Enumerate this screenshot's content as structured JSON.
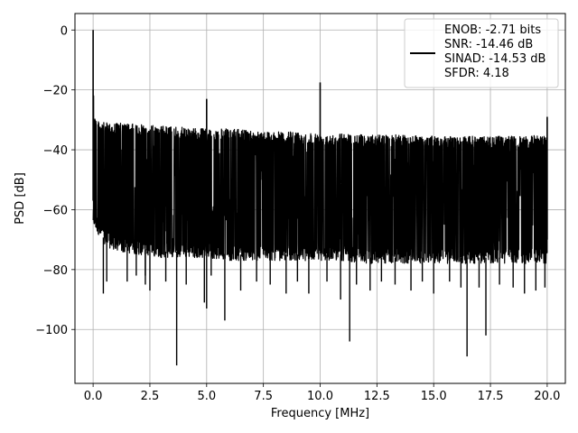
{
  "chart_data": {
    "type": "line",
    "title": "",
    "xlabel": "Frequency [MHz]",
    "ylabel": "PSD [dB]",
    "xlim": [
      -0.8,
      20.8
    ],
    "ylim": [
      -118,
      5.5
    ],
    "x_ticks": [
      0.0,
      2.5,
      5.0,
      7.5,
      10.0,
      12.5,
      15.0,
      17.5,
      20.0
    ],
    "x_tick_labels": [
      "0.0",
      "2.5",
      "5.0",
      "7.5",
      "10.0",
      "12.5",
      "15.0",
      "17.5",
      "20.0"
    ],
    "y_ticks": [
      0,
      -20,
      -40,
      -60,
      -80,
      -100
    ],
    "y_tick_labels": [
      "0",
      "−20",
      "−40",
      "−60",
      "−80",
      "−100"
    ],
    "grid": true,
    "legend_position": "top-right",
    "legend_entries": [
      "ENOB: -2.71 bits",
      "SNR: -14.46 dB",
      "SINAD: -14.53 dB",
      "SFDR: 4.18"
    ],
    "line_color": "#000000",
    "series": [
      {
        "upper_envelope": {
          "x": [
            0.0,
            0.03,
            0.06,
            0.1,
            0.2,
            0.5,
            1.0,
            2.0,
            3.0,
            4.0,
            5.0,
            6.0,
            7.0,
            8.0,
            9.0,
            10.0,
            11.0,
            12.0,
            13.0,
            14.0,
            15.0,
            16.0,
            17.0,
            18.0,
            19.0,
            19.9,
            20.0
          ],
          "y": [
            0,
            -24,
            -27,
            -29,
            -30,
            -31,
            -31,
            -31.5,
            -32,
            -32.5,
            -33,
            -33,
            -33.5,
            -34,
            -34,
            -34.5,
            -34.5,
            -35,
            -35,
            -35,
            -35.5,
            -35.5,
            -35.5,
            -35.5,
            -35.5,
            -35,
            -35
          ]
        },
        "lower_envelope": {
          "x": [
            0.0,
            0.5,
            1.0,
            2.0,
            3.0,
            4.0,
            5.0,
            6.0,
            7.0,
            8.0,
            9.0,
            10.0,
            11.0,
            12.0,
            13.0,
            14.0,
            15.0,
            16.0,
            17.0,
            18.0,
            19.0,
            20.0
          ],
          "y": [
            -65,
            -72,
            -74,
            -75,
            -76,
            -76,
            -76,
            -77,
            -77,
            -77,
            -77,
            -77,
            -77,
            -78,
            -78,
            -78,
            -78,
            -78,
            -78,
            -78,
            -78,
            -78
          ]
        },
        "spurs": [
          {
            "x": 0.0,
            "y": 0.0
          },
          {
            "x": 5.0,
            "y": -23
          },
          {
            "x": 10.0,
            "y": -17.5
          },
          {
            "x": 20.0,
            "y": -29
          }
        ],
        "dips": [
          {
            "x": 0.45,
            "y": -88
          },
          {
            "x": 0.6,
            "y": -84
          },
          {
            "x": 1.5,
            "y": -84
          },
          {
            "x": 1.9,
            "y": -82
          },
          {
            "x": 2.3,
            "y": -85
          },
          {
            "x": 2.3,
            "y": -82
          },
          {
            "x": 2.5,
            "y": -87
          },
          {
            "x": 3.2,
            "y": -84
          },
          {
            "x": 3.68,
            "y": -112
          },
          {
            "x": 4.1,
            "y": -85
          },
          {
            "x": 4.9,
            "y": -91
          },
          {
            "x": 5.0,
            "y": -93
          },
          {
            "x": 5.2,
            "y": -82
          },
          {
            "x": 5.8,
            "y": -97
          },
          {
            "x": 6.5,
            "y": -87
          },
          {
            "x": 7.2,
            "y": -84
          },
          {
            "x": 7.8,
            "y": -85
          },
          {
            "x": 8.5,
            "y": -88
          },
          {
            "x": 9.0,
            "y": -84
          },
          {
            "x": 9.5,
            "y": -88
          },
          {
            "x": 10.3,
            "y": -84
          },
          {
            "x": 10.9,
            "y": -90
          },
          {
            "x": 11.3,
            "y": -104
          },
          {
            "x": 11.6,
            "y": -85
          },
          {
            "x": 12.2,
            "y": -87
          },
          {
            "x": 12.7,
            "y": -84
          },
          {
            "x": 13.3,
            "y": -85
          },
          {
            "x": 14.0,
            "y": -87
          },
          {
            "x": 14.5,
            "y": -84
          },
          {
            "x": 15.0,
            "y": -88
          },
          {
            "x": 15.7,
            "y": -84
          },
          {
            "x": 16.2,
            "y": -86
          },
          {
            "x": 16.47,
            "y": -109
          },
          {
            "x": 17.0,
            "y": -86
          },
          {
            "x": 17.3,
            "y": -102
          },
          {
            "x": 17.9,
            "y": -85
          },
          {
            "x": 18.5,
            "y": -86
          },
          {
            "x": 19.0,
            "y": -88
          },
          {
            "x": 19.5,
            "y": -87
          },
          {
            "x": 19.9,
            "y": -86
          }
        ]
      }
    ]
  }
}
